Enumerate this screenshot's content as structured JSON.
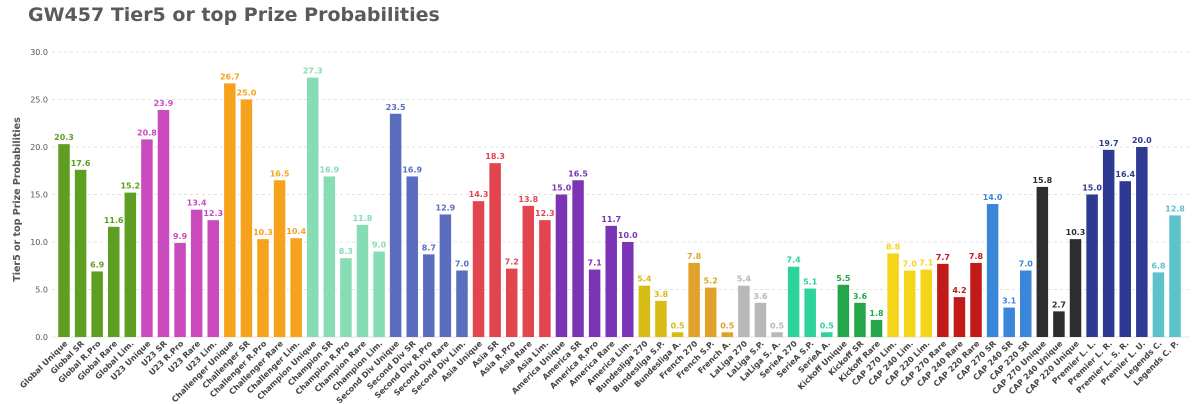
{
  "chart_data": {
    "type": "bar",
    "title": "GW457 Tier5 or top Prize Probabilities",
    "xlabel": "",
    "ylabel": "Tier5 or top Prize Probabilities",
    "ylim": [
      0,
      30
    ],
    "yticks": [
      "0.0",
      "5.0",
      "10.0",
      "15.0",
      "20.0",
      "25.0",
      "30.0"
    ],
    "grid": true,
    "categories": [
      "Global Unique",
      "Global SR",
      "Global R.Pro",
      "Global Rare",
      "Global Lim.",
      "U23 Unique",
      "U23 SR",
      "U23 R.Pro",
      "U23 Rare",
      "U23 Lim.",
      "Challenger Unique",
      "Challenger SR",
      "Challenger R.Pro",
      "Challenger Rare",
      "Challenger Lim.",
      "Champion Unique",
      "Champion SR",
      "Champion R.Pro",
      "Champion Rare",
      "Champion Lim.",
      "Second Div Unique",
      "Second Div SR",
      "Second Div R.Pro",
      "Second Div Rare",
      "Second Div Lim.",
      "Asia Unique",
      "Asia SR",
      "Asia R.Pro",
      "Asia Rare",
      "Asia Lim.",
      "America Unique",
      "America SR",
      "America R.Pro",
      "America Rare",
      "America Lim.",
      "Bundesliga 270",
      "Bundesliga S.P.",
      "Bundesliga A.",
      "French 270",
      "French S.P.",
      "French A.",
      "LaLiga 270",
      "LaLiga S.P.",
      "LaLiga S. A.",
      "SerieA 270",
      "SerieA S.P.",
      "SerieA A.",
      "Kickoff Unique",
      "Kickoff SR",
      "Kickoff Rare",
      "CAP 270 Lim.",
      "CAP 240 Lim.",
      "CAP 220 Lim.",
      "CAP 270 Rare",
      "CAP 240 Rare",
      "CAP 220 Rare",
      "CAP 270 SR",
      "CAP 240 SR",
      "CAP 220 SR",
      "CAP 270 Unique",
      "CAP 240 Unique",
      "CAP 220 Unique",
      "Premier L. L.",
      "Premier L. R.",
      "Premier L. S. R.",
      "Premier L. U.",
      "Legends C.",
      "Legends C. P."
    ],
    "values": [
      20.3,
      17.6,
      6.9,
      11.6,
      15.2,
      20.8,
      23.9,
      9.9,
      13.4,
      12.3,
      26.7,
      25.0,
      10.3,
      16.5,
      10.4,
      27.3,
      16.9,
      8.3,
      11.8,
      9.0,
      23.5,
      16.9,
      8.7,
      12.9,
      7.0,
      14.3,
      18.3,
      7.2,
      13.8,
      12.3,
      15.0,
      16.5,
      7.1,
      11.7,
      10.0,
      5.4,
      3.8,
      0.5,
      7.8,
      5.2,
      0.5,
      5.4,
      3.6,
      0.5,
      7.4,
      5.1,
      0.5,
      5.5,
      3.6,
      1.8,
      8.8,
      7.0,
      7.1,
      7.7,
      4.2,
      7.8,
      14.0,
      3.1,
      7.0,
      15.8,
      2.7,
      10.3,
      15.0,
      19.7,
      16.4,
      20.0,
      6.8,
      12.8
    ],
    "value_labels": [
      "20.3",
      "17.6",
      "6.9",
      "11.6",
      "15.2",
      "20.8",
      "23.9",
      "9.9",
      "13.4",
      "12.3",
      "26.7",
      "25.0",
      "10.3",
      "16.5",
      "10.4",
      "27.3",
      "16.9",
      "8.3",
      "11.8",
      "9.0",
      "23.5",
      "16.9",
      "8.7",
      "12.9",
      "7.0",
      "14.3",
      "18.3",
      "7.2",
      "13.8",
      "12.3",
      "15.0",
      "16.5",
      "7.1",
      "11.7",
      "10.0",
      "5.4",
      "3.8",
      "0.5",
      "7.8",
      "5.2",
      "0.5",
      "5.4",
      "3.6",
      "0.5",
      "7.4",
      "5.1",
      "0.5",
      "5.5",
      "3.6",
      "1.8",
      "8.8",
      "7.0",
      "7.1",
      "7.7",
      "4.2",
      "7.8",
      "14.0",
      "3.1",
      "7.0",
      "15.8",
      "2.7",
      "10.3",
      "15.0",
      "19.7",
      "16.4",
      "20.0",
      "6.8",
      "12.8"
    ],
    "colors": [
      "#5e9e22",
      "#5e9e22",
      "#5e9e22",
      "#5e9e22",
      "#5e9e22",
      "#c94bbd",
      "#c94bbd",
      "#c94bbd",
      "#c94bbd",
      "#c94bbd",
      "#f7a21c",
      "#f7a21c",
      "#f7a21c",
      "#f7a21c",
      "#f7a21c",
      "#86dcb3",
      "#86dcb3",
      "#86dcb3",
      "#86dcb3",
      "#86dcb3",
      "#5a6dbf",
      "#5a6dbf",
      "#5a6dbf",
      "#5a6dbf",
      "#5a6dbf",
      "#e24450",
      "#e24450",
      "#e24450",
      "#e24450",
      "#e24450",
      "#7b34b5",
      "#7b34b5",
      "#7b34b5",
      "#7b34b5",
      "#7b34b5",
      "#d6bc14",
      "#d6bc14",
      "#d6bc14",
      "#e0a22a",
      "#e0a22a",
      "#e0a22a",
      "#b8b8b8",
      "#b8b8b8",
      "#b8b8b8",
      "#2ed39a",
      "#2ed39a",
      "#2ed39a",
      "#23a74a",
      "#23a74a",
      "#23a74a",
      "#f5d51a",
      "#f5d51a",
      "#f5d51a",
      "#c21a18",
      "#c21a18",
      "#c21a18",
      "#3a86d8",
      "#3a86d8",
      "#3a86d8",
      "#2d2d2d",
      "#2d2d2d",
      "#2d2d2d",
      "#2e3a92",
      "#2e3a92",
      "#2e3a92",
      "#2e3a92",
      "#5dc2cc",
      "#5dc2cc"
    ]
  }
}
